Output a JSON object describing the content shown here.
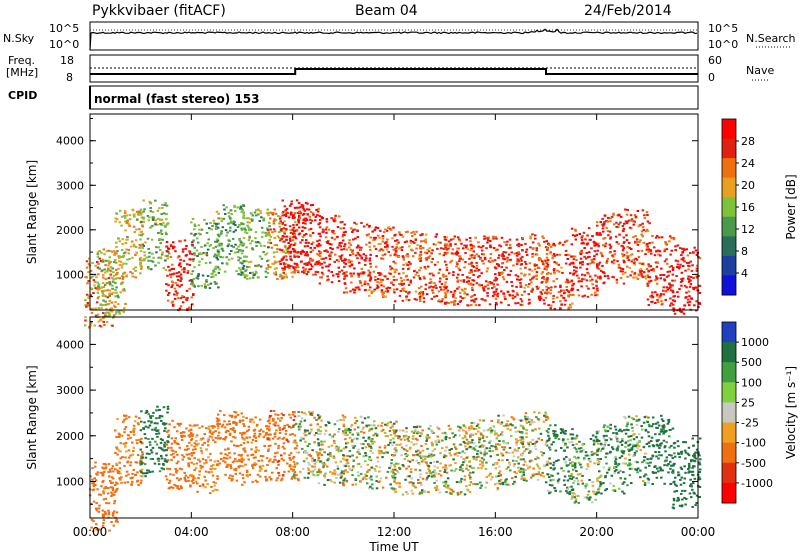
{
  "header": {
    "station": "Pykkvibaer (fitACF)",
    "beam": "Beam 04",
    "date": "24/Feb/2014"
  },
  "nsky_panel": {
    "left_label": "N.Sky",
    "left_ticks": [
      "10^5",
      "10^0"
    ],
    "right_ticks": [
      "10^5",
      "10^0"
    ],
    "right_label": "N.Search"
  },
  "freq_panel": {
    "left_label_1": "Freq.",
    "left_label_2": "[MHz]",
    "left_ticks": [
      "18",
      "8"
    ],
    "right_ticks": [
      "60",
      "0"
    ],
    "right_label": "Nave"
  },
  "cpid": {
    "label": "CPID",
    "text": "normal (fast stereo) 153"
  },
  "colors": {
    "power_scale": [
      "#1010d8",
      "#1d3fa0",
      "#2a6e5a",
      "#4a9a4a",
      "#7ec23a",
      "#e8a020",
      "#f07010",
      "#e02010",
      "#ff0000"
    ],
    "velocity_scale": [
      "#2040c0",
      "#207040",
      "#40a040",
      "#80d040",
      "#c8c8c0",
      "#f0a020",
      "#f07010",
      "#e03010",
      "#ff0000"
    ]
  },
  "chart_data": [
    {
      "type": "heatmap",
      "title": "",
      "xlabel": "",
      "ylabel": "Slant Range [km]",
      "x_ticks": [],
      "y_ticks": [
        "1000",
        "2000",
        "3000",
        "4000"
      ],
      "xlim": [
        "00:00",
        "24:00"
      ],
      "ylim": [
        200,
        4600
      ],
      "colorbar_label": "Power [dB]",
      "colorbar_ticks": [
        "4",
        "8",
        "12",
        "16",
        "20",
        "24",
        "28"
      ],
      "colorbar_range": [
        0,
        30
      ],
      "series": [
        {
          "x": [
            0.3,
            0.8,
            1.5,
            2.5,
            3.5,
            4.5,
            5.5,
            6.5,
            7.5,
            8.0,
            8.5,
            9.5,
            10.5,
            11.5,
            12.5,
            13.5,
            14.5,
            15.5,
            16.5,
            17.5,
            18.5,
            19.5,
            20.5,
            21.5,
            22.5,
            23.5
          ],
          "y": [
            600,
            800,
            1700,
            1900,
            1000,
            1500,
            1800,
            1700,
            1700,
            1900,
            1800,
            1600,
            1400,
            1300,
            1200,
            1150,
            1100,
            1100,
            1100,
            1150,
            1000,
            1300,
            1600,
            1700,
            1100,
            900
          ],
          "power": [
            20,
            16,
            18,
            14,
            26,
            12,
            12,
            14,
            20,
            28,
            26,
            26,
            26,
            24,
            24,
            24,
            24,
            26,
            26,
            24,
            24,
            26,
            26,
            24,
            26,
            28
          ]
        }
      ]
    },
    {
      "type": "heatmap",
      "title": "",
      "xlabel": "Time UT",
      "ylabel": "Slant Range [km]",
      "x_ticks": [
        "00:00",
        "04:00",
        "08:00",
        "12:00",
        "16:00",
        "20:00",
        "00:00"
      ],
      "y_ticks": [
        "1000",
        "2000",
        "3000",
        "4000"
      ],
      "xlim": [
        "00:00",
        "24:00"
      ],
      "ylim": [
        200,
        4600
      ],
      "colorbar_label": "Velocity [m s⁻¹]",
      "colorbar_ticks": [
        "1000",
        "500",
        "100",
        "25",
        "-25",
        "-100",
        "-500",
        "-1000"
      ],
      "colorbar_range": [
        -1000,
        1000
      ],
      "series": [
        {
          "x": [
            0.5,
            1.5,
            2.5,
            3.5,
            4.5,
            5.5,
            6.5,
            7.5,
            8.5,
            9.5,
            10.5,
            11.5,
            12.5,
            13.5,
            14.5,
            15.5,
            16.5,
            17.5,
            18.5,
            19.5,
            20.5,
            21.5,
            22.5,
            23.5
          ],
          "y": [
            700,
            1700,
            1900,
            1600,
            1500,
            1800,
            1700,
            1800,
            1800,
            1700,
            1700,
            1600,
            1500,
            1500,
            1500,
            1600,
            1700,
            1800,
            1500,
            1300,
            1500,
            1700,
            1700,
            1200
          ],
          "velocity": [
            -300,
            -200,
            200,
            -300,
            -150,
            -300,
            -200,
            -400,
            0,
            0,
            0,
            0,
            0,
            0,
            0,
            0,
            0,
            0,
            150,
            50,
            150,
            100,
            200,
            300
          ]
        }
      ]
    }
  ]
}
